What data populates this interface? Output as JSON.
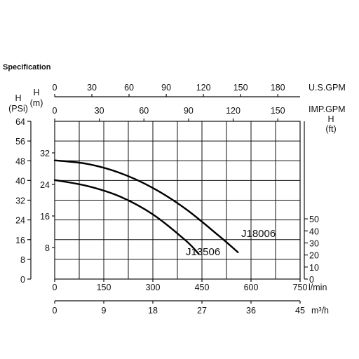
{
  "spec_title": "Specification",
  "chart_data": {
    "type": "line",
    "title": "",
    "axes": {
      "lpm": {
        "label": "l/min",
        "range": [
          0,
          750
        ],
        "ticks": [
          "0",
          "150",
          "300",
          "450",
          "600",
          "750"
        ]
      },
      "m3h": {
        "label": "m³/h",
        "range": [
          0,
          45
        ],
        "ticks": [
          "0",
          "9",
          "18",
          "27",
          "36",
          "45"
        ]
      },
      "usgpm": {
        "label": "U.S.GPM",
        "range": [
          0,
          198
        ],
        "ticks": [
          "0",
          "30",
          "60",
          "90",
          "120",
          "150",
          "180"
        ]
      },
      "impgpm": {
        "label": "IMP.GPM",
        "range": [
          0,
          165
        ],
        "ticks": [
          "0",
          "30",
          "60",
          "90",
          "120",
          "150"
        ]
      },
      "head_m": {
        "label_top": "H",
        "label_unit": "(m)",
        "range": [
          0,
          40
        ],
        "ticks": [
          "8",
          "16",
          "24",
          "32"
        ]
      },
      "head_psi": {
        "label_top": "H",
        "label_unit": "(PSi)",
        "range": [
          0,
          64
        ],
        "ticks": [
          "0",
          "8",
          "16",
          "24",
          "32",
          "40",
          "48",
          "56",
          "64"
        ]
      },
      "head_ft": {
        "label_top": "H",
        "label_unit": "(ft)",
        "range": [
          0,
          131
        ],
        "ticks": [
          "0",
          "10",
          "20",
          "30",
          "40",
          "50"
        ]
      }
    },
    "x_unit": "l/min",
    "y_unit": "m",
    "grid": true,
    "series": [
      {
        "name": "J18006",
        "x": [
          0,
          100,
          200,
          300,
          400,
          500,
          560
        ],
        "y": [
          30.1,
          29.2,
          26.9,
          23.1,
          17.8,
          11.1,
          6.8
        ]
      },
      {
        "name": "J13506",
        "x": [
          0,
          100,
          200,
          300,
          400,
          440
        ],
        "y": [
          25.1,
          23.6,
          20.9,
          16.4,
          9.8,
          6.4
        ]
      }
    ]
  }
}
